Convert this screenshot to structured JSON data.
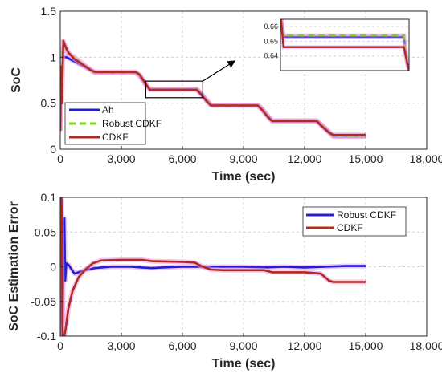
{
  "chart_data": [
    {
      "type": "line",
      "xlabel": "Time (sec)",
      "ylabel": "SoC",
      "xlim": [
        0,
        18000
      ],
      "ylim": [
        0,
        1.5
      ],
      "xticks": [
        0,
        3000,
        6000,
        9000,
        12000,
        15000,
        18000
      ],
      "xtick_labels": [
        "0",
        "3,000",
        "6,000",
        "9,000",
        "12,000",
        "15,000",
        "18,000"
      ],
      "yticks": [
        0,
        0.5,
        1,
        1.5
      ],
      "ytick_labels": [
        "0",
        "0.5",
        "1",
        "1.5"
      ],
      "grid": true,
      "legend_position": "bottom-left",
      "colors": {
        "Ah": "#1f1fd6",
        "Robust CDKF": "#7ed321",
        "CDKF": "#b22a1e"
      },
      "series": [
        {
          "name": "Ah",
          "x": [
            0,
            300,
            1500,
            1700,
            3700,
            3900,
            4200,
            4400,
            6700,
            6900,
            7200,
            7400,
            9700,
            9900,
            10200,
            10400,
            12600,
            12800,
            13200,
            13400,
            15000
          ],
          "y": [
            1.0,
            1.0,
            0.86,
            0.83,
            0.83,
            0.8,
            0.7,
            0.653,
            0.653,
            0.61,
            0.53,
            0.48,
            0.48,
            0.44,
            0.36,
            0.31,
            0.31,
            0.27,
            0.19,
            0.14,
            0.14
          ]
        },
        {
          "name": "Robust CDKF",
          "x": [
            0,
            50,
            100,
            200,
            350,
            700,
            1500,
            1700,
            3700,
            3900,
            4200,
            4400,
            6700,
            6900,
            7200,
            7400,
            9700,
            9900,
            10200,
            10400,
            12600,
            12800,
            13200,
            13400,
            15000
          ],
          "y": [
            0.2,
            0.95,
            1.08,
            1.12,
            1.05,
            1.0,
            0.86,
            0.83,
            0.83,
            0.8,
            0.7,
            0.654,
            0.654,
            0.61,
            0.53,
            0.48,
            0.48,
            0.44,
            0.36,
            0.31,
            0.31,
            0.27,
            0.19,
            0.14,
            0.14
          ]
        },
        {
          "name": "CDKF",
          "x": [
            0,
            40,
            80,
            150,
            250,
            400,
            700,
            1500,
            1700,
            3700,
            3900,
            4200,
            4400,
            6700,
            6900,
            7200,
            7400,
            9700,
            9900,
            10200,
            10400,
            12600,
            12800,
            13200,
            13400,
            15000
          ],
          "y": [
            0.2,
            0.9,
            0.5,
            1.18,
            1.12,
            1.05,
            0.98,
            0.86,
            0.84,
            0.84,
            0.81,
            0.71,
            0.646,
            0.646,
            0.6,
            0.52,
            0.475,
            0.475,
            0.43,
            0.35,
            0.305,
            0.305,
            0.26,
            0.18,
            0.155,
            0.155
          ]
        }
      ],
      "inset": {
        "xlim": [
          4500,
          7000
        ],
        "ylim": [
          0.63,
          0.665
        ],
        "yticks": [
          0.64,
          0.65,
          0.66
        ],
        "ytick_labels": [
          "0.64",
          "0.65",
          "0.66"
        ],
        "series": [
          {
            "name": "Ah",
            "x": [
              4500,
              4520,
              4560,
              6900,
              6960,
              7000
            ],
            "y": [
              0.665,
              0.665,
              0.653,
              0.653,
              0.635,
              0.63
            ]
          },
          {
            "name": "Robust CDKF",
            "x": [
              4500,
              4520,
              4560,
              6900,
              6960,
              7000
            ],
            "y": [
              0.665,
              0.665,
              0.654,
              0.654,
              0.636,
              0.63
            ]
          },
          {
            "name": "CDKF",
            "x": [
              4500,
              4510,
              4560,
              6900,
              6960,
              7000
            ],
            "y": [
              0.665,
              0.665,
              0.646,
              0.646,
              0.636,
              0.63
            ]
          }
        ]
      },
      "zoom_box": {
        "x": [
          4200,
          7000
        ],
        "y": [
          0.56,
          0.74
        ]
      }
    },
    {
      "type": "line",
      "xlabel": "Time (sec)",
      "ylabel": "SoC Estimation Error",
      "xlim": [
        0,
        18000
      ],
      "ylim": [
        -0.1,
        0.1
      ],
      "xticks": [
        0,
        3000,
        6000,
        9000,
        12000,
        15000,
        18000
      ],
      "xtick_labels": [
        "0",
        "3,000",
        "6,000",
        "9,000",
        "12,000",
        "15,000",
        "18,000"
      ],
      "yticks": [
        -0.1,
        -0.05,
        0,
        0.05,
        0.1
      ],
      "ytick_labels": [
        "-0.1",
        "-0.05",
        "0",
        "0.05",
        "0.1"
      ],
      "grid": true,
      "legend_position": "top-right",
      "colors": {
        "Robust CDKF": "#1f1fd6",
        "CDKF": "#b22a1e"
      },
      "series": [
        {
          "name": "Robust CDKF",
          "x": [
            0,
            60,
            120,
            160,
            200,
            240,
            300,
            400,
            700,
            900,
            1200,
            1700,
            2500,
            3500,
            4000,
            4500,
            5000,
            6000,
            7000,
            8000,
            9000,
            10000,
            11000,
            12000,
            13000,
            14000,
            15000
          ],
          "y": [
            -0.1,
            0.1,
            -0.08,
            0.02,
            0.07,
            -0.02,
            0.005,
            0.003,
            -0.01,
            -0.008,
            -0.005,
            -0.002,
            0.0,
            0.0,
            -0.001,
            -0.002,
            -0.001,
            0.0,
            0.0,
            0.0,
            0.0,
            -0.001,
            0.0,
            -0.001,
            0.0,
            0.001,
            0.001
          ]
        },
        {
          "name": "CDKF",
          "x": [
            0,
            60,
            120,
            200,
            260,
            400,
            600,
            900,
            1200,
            1600,
            2000,
            3000,
            4000,
            4500,
            6000,
            6600,
            7000,
            7400,
            8000,
            9000,
            10000,
            10400,
            11000,
            12000,
            12800,
            13200,
            13400,
            15000
          ],
          "y": [
            0.0,
            0.1,
            -0.1,
            -0.1,
            -0.09,
            -0.06,
            -0.035,
            -0.015,
            -0.005,
            0.005,
            0.009,
            0.01,
            0.01,
            0.008,
            0.007,
            0.006,
            0.0,
            -0.004,
            -0.005,
            -0.005,
            -0.005,
            -0.008,
            -0.008,
            -0.008,
            -0.01,
            -0.02,
            -0.022,
            -0.022
          ]
        }
      ]
    }
  ]
}
